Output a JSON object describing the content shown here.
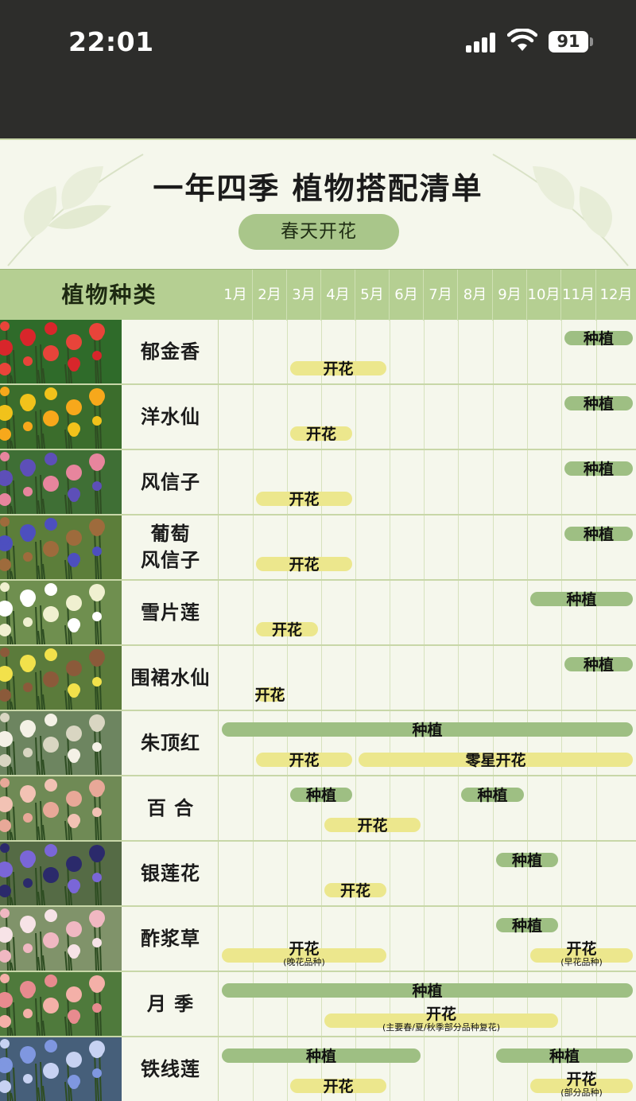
{
  "status_bar": {
    "time": "22:01",
    "battery": "91"
  },
  "poster": {
    "title": "一年四季 植物搭配清单",
    "season_tag": "春天开花",
    "column_header": "植物种类",
    "months": [
      "1月",
      "2月",
      "3月",
      "4月",
      "5月",
      "6月",
      "7月",
      "8月",
      "9月",
      "10月",
      "11月",
      "12月"
    ]
  },
  "plants": [
    {
      "name": "郁金香",
      "bars": [
        {
          "kind": "plant",
          "label": "种植",
          "start": 11,
          "end": 12
        },
        {
          "kind": "bloom",
          "label": "开花",
          "start": 3,
          "end": 5
        }
      ]
    },
    {
      "name": "洋水仙",
      "bars": [
        {
          "kind": "plant",
          "label": "种植",
          "start": 11,
          "end": 12
        },
        {
          "kind": "bloom",
          "label": "开花",
          "start": 3,
          "end": 4
        }
      ]
    },
    {
      "name": "风信子",
      "bars": [
        {
          "kind": "plant",
          "label": "种植",
          "start": 11,
          "end": 12
        },
        {
          "kind": "bloom",
          "label": "开花",
          "start": 2,
          "end": 4
        }
      ]
    },
    {
      "name": "葡萄\n风信子",
      "bars": [
        {
          "kind": "plant",
          "label": "种植",
          "start": 11,
          "end": 12
        },
        {
          "kind": "bloom",
          "label": "开花",
          "start": 2,
          "end": 4
        }
      ]
    },
    {
      "name": "雪片莲",
      "bars": [
        {
          "kind": "plant",
          "label": "种植",
          "start": 10,
          "end": 12
        },
        {
          "kind": "bloom",
          "label": "开花",
          "start": 2,
          "end": 3
        }
      ]
    },
    {
      "name": "围裙水仙",
      "bars": [
        {
          "kind": "plant",
          "label": "种植",
          "start": 11,
          "end": 12
        },
        {
          "kind": "bloom",
          "label": "开花",
          "start": 2,
          "end": 2
        }
      ]
    },
    {
      "name": "朱顶红",
      "bars": [
        {
          "kind": "plant",
          "label": "种植",
          "start": 1,
          "end": 12
        },
        {
          "kind": "bloom",
          "label": "开花",
          "start": 2,
          "end": 4
        },
        {
          "kind": "bloom",
          "label": "零星开花",
          "start": 5,
          "end": 12
        }
      ]
    },
    {
      "name": "百 合",
      "bars": [
        {
          "kind": "plant",
          "label": "种植",
          "start": 3,
          "end": 4
        },
        {
          "kind": "plant",
          "label": "种植",
          "start": 8,
          "end": 9
        },
        {
          "kind": "bloom",
          "label": "开花",
          "start": 4,
          "end": 6
        }
      ]
    },
    {
      "name": "银莲花",
      "bars": [
        {
          "kind": "plant",
          "label": "种植",
          "start": 9,
          "end": 10
        },
        {
          "kind": "bloom",
          "label": "开花",
          "start": 4,
          "end": 5
        }
      ]
    },
    {
      "name": "酢浆草",
      "bars": [
        {
          "kind": "plant",
          "label": "种植",
          "start": 9,
          "end": 10
        },
        {
          "kind": "bloom",
          "label": "开花",
          "note": "(晚花品种)",
          "start": 1,
          "end": 5
        },
        {
          "kind": "bloom",
          "label": "开花",
          "note": "(早花品种)",
          "start": 10,
          "end": 12
        }
      ]
    },
    {
      "name": "月 季",
      "bars": [
        {
          "kind": "plant",
          "label": "种植",
          "start": 1,
          "end": 12
        },
        {
          "kind": "bloom",
          "label": "开花",
          "note": "(主要春/夏/秋季部分品种复花)",
          "start": 4,
          "end": 10
        }
      ]
    },
    {
      "name": "铁线莲",
      "bars": [
        {
          "kind": "plant",
          "label": "种植",
          "start": 1,
          "end": 6
        },
        {
          "kind": "plant",
          "label": "种植",
          "start": 9,
          "end": 12
        },
        {
          "kind": "bloom",
          "label": "开花",
          "start": 3,
          "end": 5
        },
        {
          "kind": "bloom",
          "label": "开花",
          "note": "(部分品种)",
          "start": 10,
          "end": 12
        }
      ]
    }
  ],
  "colors": {
    "plant_bar": "#9ebf83",
    "bloom_bar": "#ece78d",
    "header_green": "#b5cf92",
    "tag_green": "#a9c68a"
  }
}
